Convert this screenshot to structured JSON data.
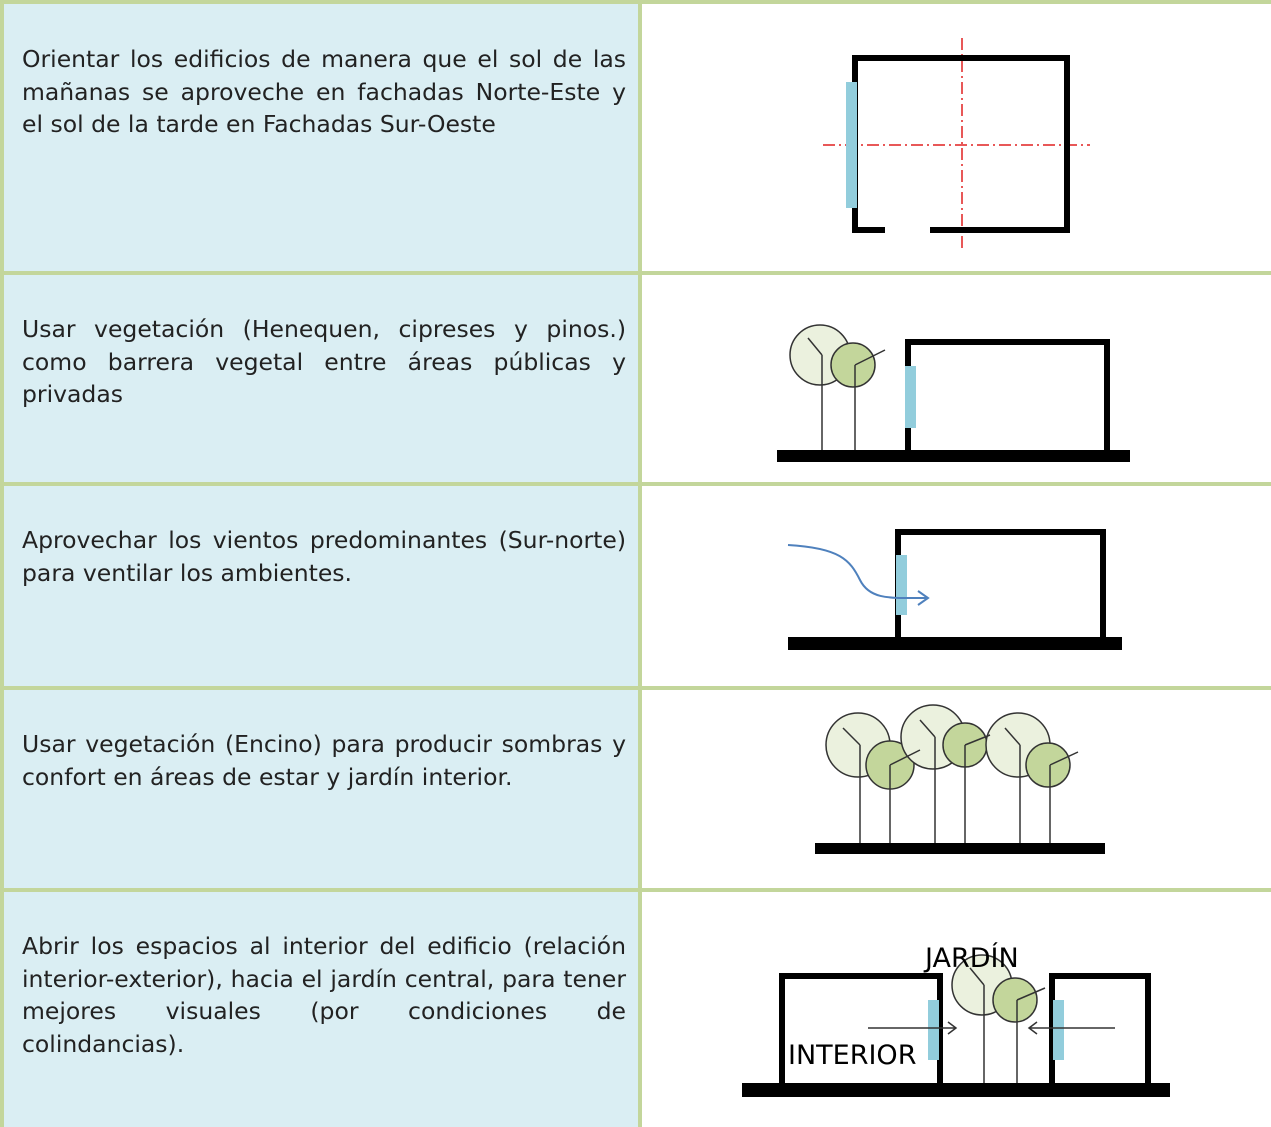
{
  "rows": [
    {
      "text": "Orientar los edificios de manera que el sol de las mañanas se aproveche en fachadas Norte-Este y el sol de la tarde en Fachadas Sur-Oeste"
    },
    {
      "text": "Usar vegetación (Henequen, cipreses y pinos.) como barrera vegetal entre áreas públicas y privadas"
    },
    {
      "text": "Aprovechar los vientos predominantes (Sur-norte) para ventilar los ambientes."
    },
    {
      "text": "Usar vegetación (Encino) para producir sombras y confort en áreas de estar y jardín interior."
    },
    {
      "text": "Abrir los espacios al interior del edificio (relación interior-exterior), hacia el jardín central, para tener mejores visuales (por condiciones de colindancias).",
      "labels": [
        "JARDÍN",
        "INTERIOR"
      ]
    }
  ]
}
